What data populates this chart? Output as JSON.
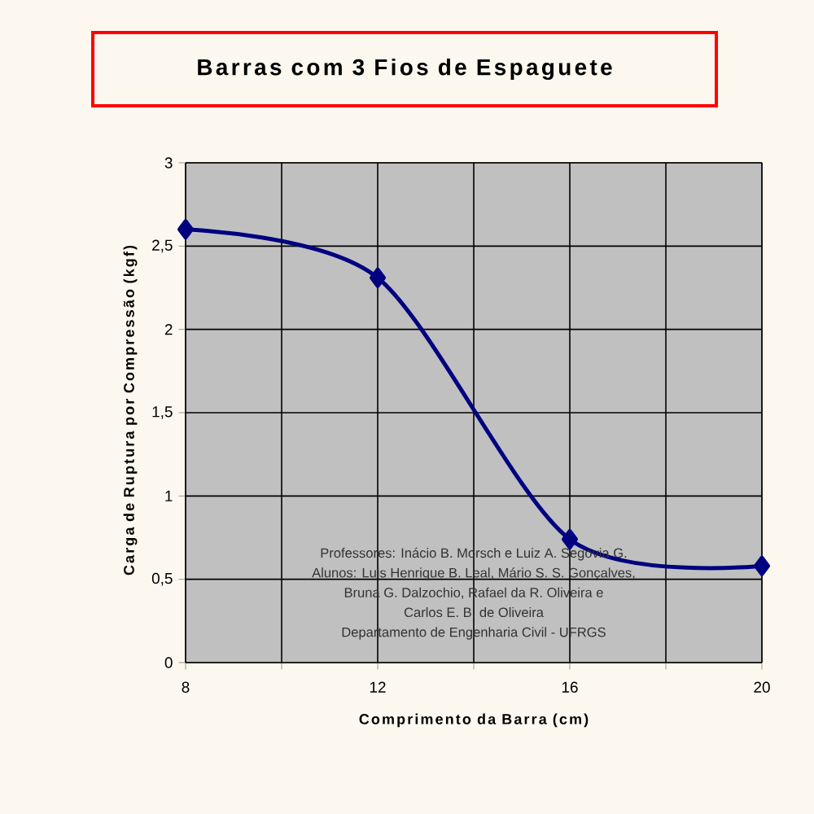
{
  "chart_data": {
    "type": "line",
    "title": "Barras com 3 Fios de Espaguete",
    "xlabel": "Comprimento da Barra (cm)",
    "ylabel": "Carga de Ruptura por Compressão (kgf)",
    "x": [
      8,
      12,
      16,
      20
    ],
    "series": [
      {
        "color": "#000080",
        "values": [
          2.6,
          2.31,
          0.74,
          0.58
        ]
      }
    ],
    "xlim": [
      8,
      20
    ],
    "xticks": [
      8,
      {
        "value": 10,
        "label": null
      },
      12,
      {
        "value": 14,
        "label": null
      },
      16,
      {
        "value": 18,
        "label": null
      },
      20
    ],
    "ylim": [
      0,
      3
    ],
    "yticks": [
      0,
      {
        "value": 0.5,
        "label": "0,5"
      },
      1,
      {
        "value": 1.5,
        "label": "1,5"
      },
      2,
      {
        "value": 2.5,
        "label": "2,5"
      },
      3
    ],
    "grid": true,
    "marker": "diamond",
    "line_style": "solid",
    "annotations": [
      "Professores: Inácio B. Morsch e Luiz A. Segovia G.",
      "Alunos: Luis Henrique B. Leal, Mário S. S. Gonçalves,",
      "Bruna G. Dalzochio, Rafael da R. Oliveira e",
      "Carlos E. B. de Oliveira",
      "Departamento de Engenharia Civil - UFRGS"
    ]
  }
}
